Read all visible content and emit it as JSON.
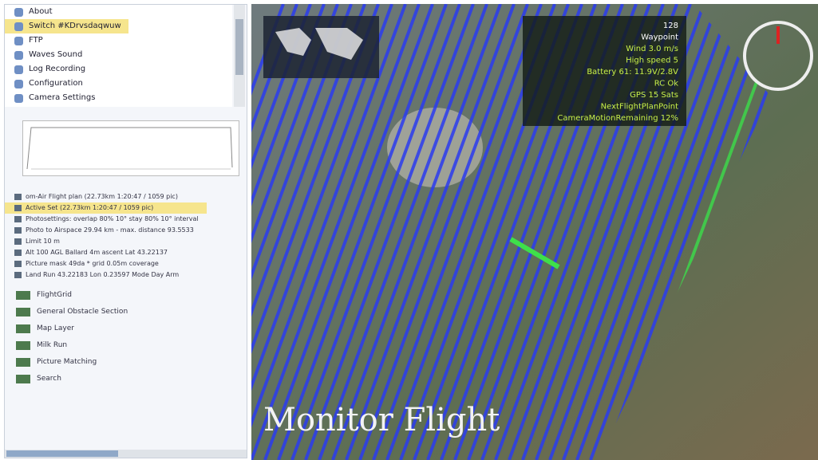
{
  "menu": {
    "items": [
      "About",
      "Switch #KDrvsdaqwuw",
      "FTP",
      "Waves Sound",
      "Log Recording",
      "Configuration",
      "Camera Settings"
    ]
  },
  "tree": {
    "items": [
      "om-Air Flight plan (22.73km 1:20:47 / 1059 pic)",
      "Active Set (22.73km 1:20:47 / 1059 pic)",
      "Photosettings: overlap 80% 10° stay 80% 10° interval",
      "Photo to Airspace 29.94 km - max. distance 93.5533",
      "Limit 10 m",
      "Alt 100 AGL Ballard 4m ascent Lat 43.22137",
      "Picture mask 49da * grid 0.05m coverage",
      "Land Run 43.22183 Lon 0.23597 Mode Day Arm"
    ],
    "groups": [
      "FlightGrid",
      "General Obstacle Section",
      "Map Layer",
      "Milk Run",
      "Picture Matching",
      "Search"
    ]
  },
  "info": {
    "lines": [
      "128",
      "Waypoint",
      "Wind 3.0 m/s",
      "High speed 5",
      "Battery 61: 11.9V/2.8V",
      "RC Ok",
      "GPS 15 Sats",
      "NextFlightPlanPoint",
      "CameraMotionRemaining 12%"
    ]
  },
  "overlay": {
    "title": "Monitor Flight"
  }
}
